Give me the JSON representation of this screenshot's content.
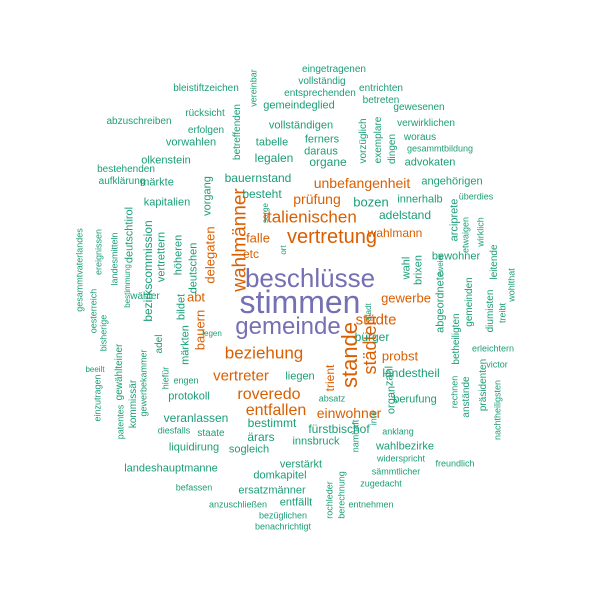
{
  "palette": {
    "primary": "#7570b3",
    "secondary": "#d95f02",
    "tertiary": "#1b9e77"
  },
  "words": [
    {
      "text": "stimmen",
      "color": "#7570b3"
    },
    {
      "text": "beschlüsse",
      "color": "#7570b3"
    },
    {
      "text": "gemeinde",
      "color": "#7570b3"
    },
    {
      "text": "stande",
      "color": "#d95f02"
    },
    {
      "text": "wahlmänner",
      "color": "#d95f02"
    },
    {
      "text": "vertretung",
      "color": "#d95f02"
    },
    {
      "text": "städten",
      "color": "#d95f02"
    },
    {
      "text": "italienischen",
      "color": "#d95f02"
    },
    {
      "text": "beziehung",
      "color": "#d95f02"
    },
    {
      "text": "roveredo",
      "color": "#d95f02"
    },
    {
      "text": "entfallen",
      "color": "#d95f02"
    },
    {
      "text": "städte",
      "color": "#d95f02"
    },
    {
      "text": "vertreter",
      "color": "#d95f02"
    },
    {
      "text": "vertreten",
      "color": "#d95f02"
    },
    {
      "text": "unbefangenheit",
      "color": "#d95f02"
    },
    {
      "text": "einwohner",
      "color": "#d95f02"
    },
    {
      "text": "prüfung",
      "color": "#d95f02"
    },
    {
      "text": "wahlmann",
      "color": "#d95f02"
    },
    {
      "text": "gewerbe",
      "color": "#d95f02"
    },
    {
      "text": "delegaten",
      "color": "#d95f02"
    },
    {
      "text": "bauern",
      "color": "#d95f02"
    },
    {
      "text": "probst",
      "color": "#d95f02"
    },
    {
      "text": "trient",
      "color": "#d95f02"
    },
    {
      "text": "falle",
      "color": "#d95f02"
    },
    {
      "text": "abt",
      "color": "#d95f02"
    },
    {
      "text": "etc",
      "color": "#d95f02"
    },
    {
      "text": "bozen",
      "color": "#1b9e77"
    },
    {
      "text": "adelstand",
      "color": "#1b9e77"
    },
    {
      "text": "bauernstand",
      "color": "#1b9e77"
    },
    {
      "text": "besteht",
      "color": "#1b9e77"
    },
    {
      "text": "legalen",
      "color": "#1b9e77"
    },
    {
      "text": "organe",
      "color": "#1b9e77"
    },
    {
      "text": "vollständigen",
      "color": "#1b9e77"
    },
    {
      "text": "gemeindeglied",
      "color": "#1b9e77"
    },
    {
      "text": "bürger",
      "color": "#1b9e77"
    },
    {
      "text": "landestheil",
      "color": "#1b9e77"
    },
    {
      "text": "fürstbischof",
      "color": "#1b9e77"
    },
    {
      "text": "bestimmt",
      "color": "#1b9e77"
    },
    {
      "text": "ärars",
      "color": "#1b9e77"
    },
    {
      "text": "veranlassen",
      "color": "#1b9e77"
    },
    {
      "text": "protokoll",
      "color": "#1b9e77"
    },
    {
      "text": "liquidirung",
      "color": "#1b9e77"
    },
    {
      "text": "sogleich",
      "color": "#1b9e77"
    },
    {
      "text": "innsbruck",
      "color": "#1b9e77"
    },
    {
      "text": "wahlbezirke",
      "color": "#1b9e77"
    },
    {
      "text": "landeshauptmanne",
      "color": "#1b9e77"
    },
    {
      "text": "domkapitel",
      "color": "#1b9e77"
    },
    {
      "text": "verstärkt",
      "color": "#1b9e77"
    },
    {
      "text": "ersatzmänner",
      "color": "#1b9e77"
    },
    {
      "text": "entfällt",
      "color": "#1b9e77"
    },
    {
      "text": "liegen",
      "color": "#1b9e77"
    },
    {
      "text": "abgeordnete",
      "color": "#1b9e77"
    },
    {
      "text": "bezirkscommission",
      "color": "#1b9e77"
    },
    {
      "text": "kapitalien",
      "color": "#1b9e77"
    },
    {
      "text": "höheren",
      "color": "#1b9e77"
    },
    {
      "text": "deutschen",
      "color": "#1b9e77"
    },
    {
      "text": "vorgang",
      "color": "#1b9e77"
    },
    {
      "text": "deutschtirol",
      "color": "#1b9e77"
    },
    {
      "text": "vertrettern",
      "color": "#1b9e77"
    },
    {
      "text": "märkten",
      "color": "#1b9e77"
    },
    {
      "text": "bildet",
      "color": "#1b9e77"
    },
    {
      "text": "olkenstein",
      "color": "#1b9e77"
    },
    {
      "text": "märkte",
      "color": "#1b9e77"
    },
    {
      "text": "tabelle",
      "color": "#1b9e77"
    },
    {
      "text": "advokaten",
      "color": "#1b9e77"
    },
    {
      "text": "angehörigen",
      "color": "#1b9e77"
    },
    {
      "text": "vorwahlen",
      "color": "#1b9e77"
    },
    {
      "text": "ferners",
      "color": "#1b9e77"
    },
    {
      "text": "daraus",
      "color": "#1b9e77"
    },
    {
      "text": "brixen",
      "color": "#1b9e77"
    },
    {
      "text": "wahl",
      "color": "#1b9e77"
    },
    {
      "text": "innerhalb",
      "color": "#1b9e77"
    },
    {
      "text": "bewohner",
      "color": "#1b9e77"
    },
    {
      "text": "arciprete",
      "color": "#1b9e77"
    },
    {
      "text": "zahl",
      "color": "#1b9e77"
    },
    {
      "text": "organ",
      "color": "#1b9e77"
    },
    {
      "text": "berufung",
      "color": "#1b9e77"
    },
    {
      "text": "anklang",
      "color": "#1b9e77"
    },
    {
      "text": "widerspricht",
      "color": "#1b9e77"
    },
    {
      "text": "namhaft",
      "color": "#1b9e77"
    },
    {
      "text": "vorzüglich",
      "color": "#1b9e77"
    },
    {
      "text": "exemplare",
      "color": "#1b9e77"
    },
    {
      "text": "dingen",
      "color": "#1b9e77"
    },
    {
      "text": "betreffenden",
      "color": "#1b9e77"
    },
    {
      "text": "erfolgen",
      "color": "#1b9e77"
    },
    {
      "text": "rücksicht",
      "color": "#1b9e77"
    },
    {
      "text": "bleistiftzeichen",
      "color": "#1b9e77"
    },
    {
      "text": "abzuschreiben",
      "color": "#1b9e77"
    },
    {
      "text": "bestehenden",
      "color": "#1b9e77"
    },
    {
      "text": "aufklärung",
      "color": "#1b9e77"
    },
    {
      "text": "eingetragenen",
      "color": "#1b9e77"
    },
    {
      "text": "vollständig",
      "color": "#1b9e77"
    },
    {
      "text": "entsprechenden",
      "color": "#1b9e77"
    },
    {
      "text": "entrichten",
      "color": "#1b9e77"
    },
    {
      "text": "betreten",
      "color": "#1b9e77"
    },
    {
      "text": "gewesenen",
      "color": "#1b9e77"
    },
    {
      "text": "verwirklichen",
      "color": "#1b9e77"
    },
    {
      "text": "woraus",
      "color": "#1b9e77"
    },
    {
      "text": "gesammtbildung",
      "color": "#1b9e77"
    },
    {
      "text": "vereinbar",
      "color": "#1b9e77"
    },
    {
      "text": "zweier",
      "color": "#1b9e77"
    },
    {
      "text": "überdies",
      "color": "#1b9e77"
    },
    {
      "text": "etwaigen",
      "color": "#1b9e77"
    },
    {
      "text": "wirklich",
      "color": "#1b9e77"
    },
    {
      "text": "leitende",
      "color": "#1b9e77"
    },
    {
      "text": "gemeinden",
      "color": "#1b9e77"
    },
    {
      "text": "diumisten",
      "color": "#1b9e77"
    },
    {
      "text": "treibt",
      "color": "#1b9e77"
    },
    {
      "text": "wohlthat",
      "color": "#1b9e77"
    },
    {
      "text": "betheiligten",
      "color": "#1b9e77"
    },
    {
      "text": "erleichtern",
      "color": "#1b9e77"
    },
    {
      "text": "victor",
      "color": "#1b9e77"
    },
    {
      "text": "rechnen",
      "color": "#1b9e77"
    },
    {
      "text": "anstände",
      "color": "#1b9e77"
    },
    {
      "text": "präsidenten",
      "color": "#1b9e77"
    },
    {
      "text": "nachtheiligsten",
      "color": "#1b9e77"
    },
    {
      "text": "freundlich",
      "color": "#1b9e77"
    },
    {
      "text": "sämmtlicher",
      "color": "#1b9e77"
    },
    {
      "text": "zugedacht",
      "color": "#1b9e77"
    },
    {
      "text": "entnehmen",
      "color": "#1b9e77"
    },
    {
      "text": "rochleder",
      "color": "#1b9e77"
    },
    {
      "text": "berechnung",
      "color": "#1b9e77"
    },
    {
      "text": "bezüglichen",
      "color": "#1b9e77"
    },
    {
      "text": "benachrichtigt",
      "color": "#1b9e77"
    },
    {
      "text": "anzuschließen",
      "color": "#1b9e77"
    },
    {
      "text": "befassen",
      "color": "#1b9e77"
    },
    {
      "text": "staate",
      "color": "#1b9e77"
    },
    {
      "text": "diesfalls",
      "color": "#1b9e77"
    },
    {
      "text": "absatz",
      "color": "#1b9e77"
    },
    {
      "text": "inte",
      "color": "#1b9e77"
    },
    {
      "text": "engen",
      "color": "#1b9e77"
    },
    {
      "text": "gewerbekammer",
      "color": "#1b9e77"
    },
    {
      "text": "gewählteiner",
      "color": "#1b9e77"
    },
    {
      "text": "kommissär",
      "color": "#1b9e77"
    },
    {
      "text": "patentes",
      "color": "#1b9e77"
    },
    {
      "text": "einzutragen",
      "color": "#1b9e77"
    },
    {
      "text": "beeilt",
      "color": "#1b9e77"
    },
    {
      "text": "bisherige",
      "color": "#1b9e77"
    },
    {
      "text": "oesterreich",
      "color": "#1b9e77"
    },
    {
      "text": "gesammtvaterlandes",
      "color": "#1b9e77"
    },
    {
      "text": "ereignissen",
      "color": "#1b9e77"
    },
    {
      "text": "landesmitteln",
      "color": "#1b9e77"
    },
    {
      "text": "bestimmung",
      "color": "#1b9e77"
    },
    {
      "text": "wähler",
      "color": "#1b9e77"
    },
    {
      "text": "adel",
      "color": "#1b9e77"
    },
    {
      "text": "hiefür",
      "color": "#1b9e77"
    },
    {
      "text": "legen",
      "color": "#1b9e77"
    },
    {
      "text": "ort",
      "color": "#1b9e77"
    },
    {
      "text": "sorge",
      "color": "#1b9e77"
    },
    {
      "text": "stadt",
      "color": "#1b9e77"
    },
    {
      "text": "etc",
      "color": "#1b9e77"
    }
  ]
}
